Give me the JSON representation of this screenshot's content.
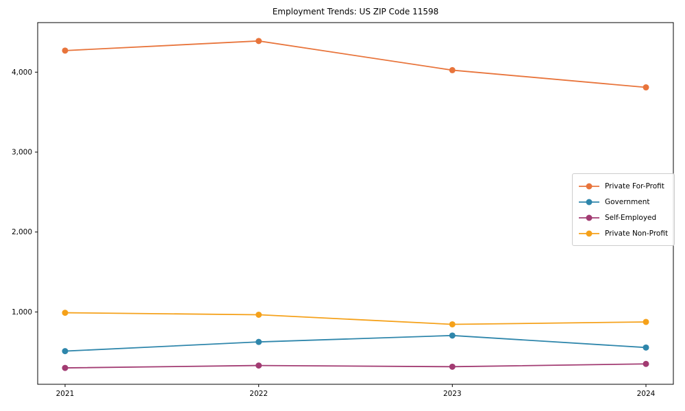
{
  "chart_data": {
    "type": "line",
    "title": "Employment Trends: US ZIP Code 11598",
    "xlabel": "",
    "ylabel": "",
    "x": [
      2021,
      2022,
      2023,
      2024
    ],
    "x_tick_labels": [
      "2021",
      "2022",
      "2023",
      "2024"
    ],
    "y_ticks": [
      1000,
      2000,
      3000,
      4000
    ],
    "y_tick_labels": [
      "1,000",
      "2,000",
      "3,000",
      "4,000"
    ],
    "ylim": [
      95,
      4620
    ],
    "grid": false,
    "legend_position": "center-right",
    "series": [
      {
        "name": "Private For-Profit",
        "color": "#e8743b",
        "values": [
          4270,
          4390,
          4025,
          3810
        ]
      },
      {
        "name": "Government",
        "color": "#2e86ab",
        "values": [
          510,
          625,
          705,
          555
        ]
      },
      {
        "name": "Self-Employed",
        "color": "#a23b72",
        "values": [
          300,
          330,
          315,
          350
        ]
      },
      {
        "name": "Private Non-Profit",
        "color": "#f5a11a",
        "values": [
          990,
          965,
          845,
          875
        ]
      }
    ]
  }
}
